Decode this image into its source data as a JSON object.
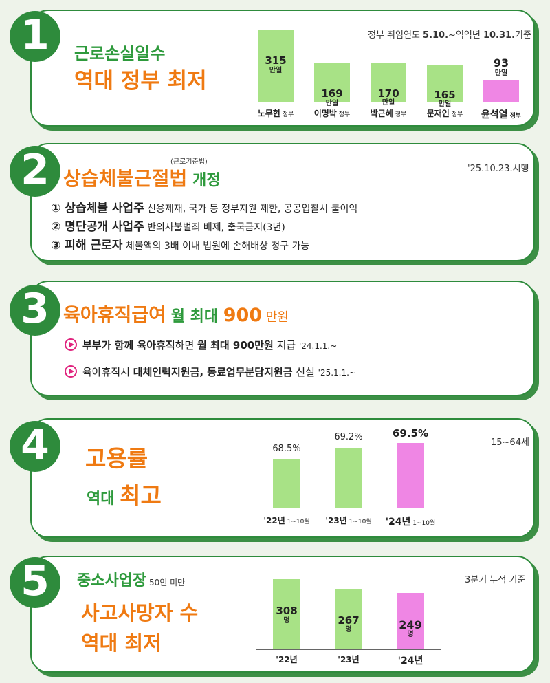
{
  "section1": {
    "number": "1",
    "title_line1": "근로손실일수",
    "title_line2": "역대 정부 최저",
    "note_prefix": "정부 취임연도 ",
    "note_date1": "5.10.",
    "note_mid": "~익익년 ",
    "note_date2": "10.31.",
    "note_suffix": "기준"
  },
  "section2": {
    "number": "2",
    "title_small": "(근로기준법)",
    "title_main": "상습체불근절법",
    "title_suffix": " 개정",
    "effective": "'25.10.23.시행",
    "items": [
      {
        "label": "① 상습체불 사업주",
        "desc": "신용제재, 국가 등 정부지원 제한, 공공입찰시 불이익"
      },
      {
        "label": "② 명단공개 사업주",
        "desc": "반의사불벌죄 배제, 출국금지(3년)"
      },
      {
        "label": "③ 피해 근로자",
        "desc": "체불액의 3배 이내 법원에 손해배상 청구 가능"
      }
    ]
  },
  "section3": {
    "number": "3",
    "title_main": "육아휴직급여",
    "title_mid": " 월 최대 ",
    "title_amount": "900",
    "title_unit": "만원",
    "line1": {
      "a": "부부가 함께 육아휴직",
      "b": "하면 ",
      "c": "월 최대 900만원",
      "d": " 지급 ",
      "e": "'24.1.1.~"
    },
    "line2": {
      "a": "육아휴직시 ",
      "b": "대체인력지원금, 동료업무분담지원금",
      "c": " 신설 ",
      "d": "'25.1.1.~"
    }
  },
  "section4": {
    "number": "4",
    "title_line1": "고용률",
    "title_line2a": "역대 ",
    "title_line2b": "최고",
    "note": "15~64세"
  },
  "section5": {
    "number": "5",
    "title_line1": "중소사업장",
    "title_line1_small": " 50인 미만",
    "title_line2": "사고사망자 수",
    "title_line3": "역대 최저",
    "note": "3분기 누적 기준"
  },
  "chart_data": [
    {
      "type": "bar",
      "categories": [
        "노무현 정부",
        "이명박 정부",
        "박근혜 정부",
        "문재인 정부",
        "윤석열 정부"
      ],
      "category_names": [
        "노무현",
        "이명박",
        "박근혜",
        "문재인",
        "윤석열"
      ],
      "category_suffix": "정부",
      "values": [
        315,
        169,
        170,
        165,
        93
      ],
      "labels": [
        "315",
        "169",
        "170",
        "165",
        "93"
      ],
      "unit": "만일",
      "ylim": [
        0,
        315
      ],
      "colors": [
        "#a8e286",
        "#a8e286",
        "#a8e286",
        "#a8e286",
        "#ef86e4"
      ]
    },
    {
      "type": "bar",
      "categories": [
        "'22년 1~10월",
        "'23년 1~10월",
        "'24년 1~10월"
      ],
      "category_names": [
        "'22년",
        "'23년",
        "'24년"
      ],
      "category_suffix": "1~10월",
      "values": [
        68.5,
        69.2,
        69.5
      ],
      "labels": [
        "68.5%",
        "69.2%",
        "69.5%"
      ],
      "ylim": [
        65.6,
        69.5
      ],
      "colors": [
        "#a8e286",
        "#a8e286",
        "#ef86e4"
      ]
    },
    {
      "type": "bar",
      "categories": [
        "'22년",
        "'23년",
        "'24년"
      ],
      "values": [
        308,
        267,
        249
      ],
      "labels": [
        "308",
        "267",
        "249"
      ],
      "unit": "명",
      "ylim": [
        0,
        308
      ],
      "colors": [
        "#a8e286",
        "#a8e286",
        "#ef86e4"
      ]
    }
  ]
}
